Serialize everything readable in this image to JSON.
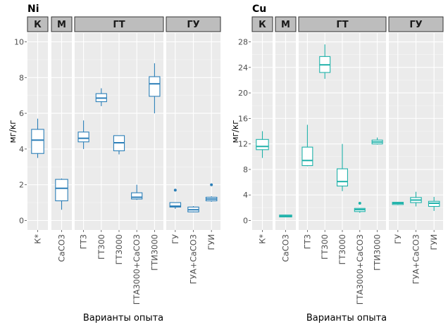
{
  "chart_data": [
    {
      "type": "boxplot",
      "title": "Ni",
      "ylabel": "мг/кг",
      "xlabel": "Варианты опыта",
      "ylim": [
        -0.5,
        10.5
      ],
      "yticks": [
        0,
        2,
        4,
        6,
        8,
        10
      ],
      "grid": true,
      "color": "#2c7fb8",
      "facets": [
        {
          "label": "К",
          "categories": [
            "К*"
          ]
        },
        {
          "label": "М",
          "categories": [
            "CaCO3"
          ]
        },
        {
          "label": "ГТ",
          "categories": [
            "ГТ3",
            "ГТ300",
            "ГТ3000",
            "ГТА3000+CaCO3",
            "ГТИ3000"
          ]
        },
        {
          "label": "ГУ",
          "categories": [
            "ГУ",
            "ГУА+CaCO3",
            "ГУИ"
          ]
        }
      ],
      "boxes": [
        {
          "category": "К*",
          "min": 3.5,
          "q1": 3.75,
          "median": 4.5,
          "q3": 5.1,
          "max": 5.7,
          "outliers": []
        },
        {
          "category": "CaCO3",
          "min": 0.6,
          "q1": 1.1,
          "median": 1.8,
          "q3": 2.3,
          "max": 2.35,
          "outliers": []
        },
        {
          "category": "ГТ3",
          "min": 4.0,
          "q1": 4.4,
          "median": 4.6,
          "q3": 4.95,
          "max": 5.6,
          "outliers": []
        },
        {
          "category": "ГТ300",
          "min": 6.4,
          "q1": 6.65,
          "median": 6.85,
          "q3": 7.1,
          "max": 7.4,
          "outliers": []
        },
        {
          "category": "ГТ3000",
          "min": 3.7,
          "q1": 3.9,
          "median": 4.35,
          "q3": 4.75,
          "max": 4.75,
          "outliers": []
        },
        {
          "category": "ГТА3000+CaCO3",
          "min": 1.15,
          "q1": 1.2,
          "median": 1.3,
          "q3": 1.55,
          "max": 2.0,
          "outliers": []
        },
        {
          "category": "ГТИ3000",
          "min": 6.0,
          "q1": 6.95,
          "median": 7.65,
          "q3": 8.05,
          "max": 8.8,
          "outliers": []
        },
        {
          "category": "ГУ",
          "min": 0.65,
          "q1": 0.75,
          "median": 0.8,
          "q3": 1.0,
          "max": 1.0,
          "outliers": [
            1.7
          ]
        },
        {
          "category": "ГУА+CaCO3",
          "min": 0.45,
          "q1": 0.48,
          "median": 0.6,
          "q3": 0.75,
          "max": 0.8,
          "outliers": []
        },
        {
          "category": "ГУИ",
          "min": 1.05,
          "q1": 1.1,
          "median": 1.2,
          "q3": 1.3,
          "max": 1.35,
          "outliers": [
            2.0
          ]
        }
      ]
    },
    {
      "type": "boxplot",
      "title": "Cu",
      "ylabel": "мг/кг",
      "xlabel": "Варианты опыта",
      "ylim": [
        -1.4,
        29.5
      ],
      "yticks": [
        0,
        4,
        8,
        12,
        16,
        20,
        24,
        28
      ],
      "grid": true,
      "color": "#20b2aa",
      "facets": [
        {
          "label": "К",
          "categories": [
            "К*"
          ]
        },
        {
          "label": "М",
          "categories": [
            "CaCO3"
          ]
        },
        {
          "label": "ГТ",
          "categories": [
            "ГТ3",
            "ГТ300",
            "ГТ3000",
            "ГТА3000+CaCO3",
            "ГТИ3000"
          ]
        },
        {
          "label": "ГУ",
          "categories": [
            "ГУ",
            "ГУА+CaCO3",
            "ГУИ"
          ]
        }
      ],
      "boxes": [
        {
          "category": "К*",
          "min": 9.8,
          "q1": 11.1,
          "median": 11.6,
          "q3": 12.7,
          "max": 14.0,
          "outliers": []
        },
        {
          "category": "CaCO3",
          "min": 0.5,
          "q1": 0.55,
          "median": 0.7,
          "q3": 0.85,
          "max": 0.9,
          "outliers": []
        },
        {
          "category": "ГТ3",
          "min": 8.5,
          "q1": 8.6,
          "median": 9.4,
          "q3": 11.5,
          "max": 15.0,
          "outliers": []
        },
        {
          "category": "ГТ300",
          "min": 22.2,
          "q1": 23.2,
          "median": 24.4,
          "q3": 25.7,
          "max": 27.6,
          "outliers": []
        },
        {
          "category": "ГТ3000",
          "min": 4.6,
          "q1": 5.4,
          "median": 6.1,
          "q3": 8.1,
          "max": 12.0,
          "outliers": []
        },
        {
          "category": "ГТА3000+CaCO3",
          "min": 1.2,
          "q1": 1.4,
          "median": 1.7,
          "q3": 1.9,
          "max": 1.95,
          "outliers": [
            2.7
          ]
        },
        {
          "category": "ГТИ3000",
          "min": 11.9,
          "q1": 12.0,
          "median": 12.3,
          "q3": 12.6,
          "max": 13.0,
          "outliers": []
        },
        {
          "category": "ГУ",
          "min": 2.4,
          "q1": 2.5,
          "median": 2.7,
          "q3": 2.85,
          "max": 2.9,
          "outliers": []
        },
        {
          "category": "ГУА+CaCO3",
          "min": 2.2,
          "q1": 2.8,
          "median": 3.2,
          "q3": 3.6,
          "max": 4.5,
          "outliers": []
        },
        {
          "category": "ГУИ",
          "min": 1.5,
          "q1": 2.2,
          "median": 2.7,
          "q3": 3.0,
          "max": 3.7,
          "outliers": []
        }
      ]
    }
  ]
}
